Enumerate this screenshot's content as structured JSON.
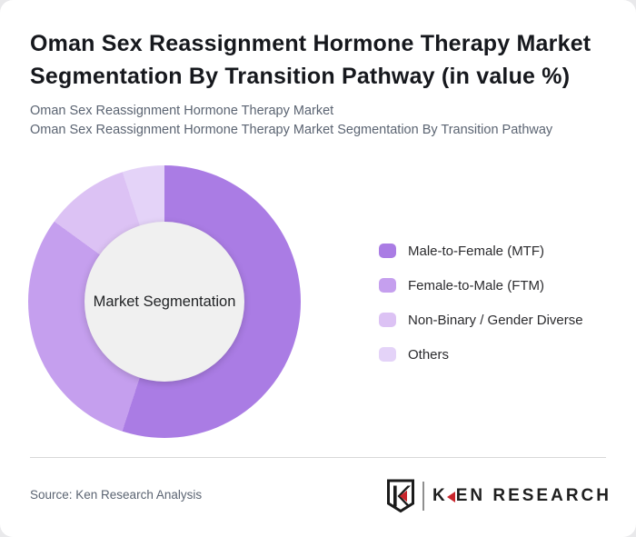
{
  "header": {
    "title_lines": [
      "Oman Sex Reassignment Hormone Therapy Market",
      "Segmentation By Transition Pathway (in value %)"
    ],
    "subtitle_lines": [
      "Oman Sex Reassignment Hormone Therapy Market",
      "Oman Sex Reassignment Hormone Therapy Market Segmentation By Transition Pathway"
    ]
  },
  "chart_data": {
    "type": "pie",
    "variant": "donut",
    "title": "Oman Sex Reassignment Hormone Therapy Market Segmentation By Transition Pathway (in value %)",
    "center_label": "Market Segmentation",
    "start_angle_deg": 0,
    "direction": "clockwise",
    "legend_position": "right",
    "inner_circle_color": "#f0f0f0",
    "segments": [
      {
        "label": "Male-to-Female (MTF)",
        "value": 55,
        "color": "#aa7ce4"
      },
      {
        "label": "Female-to-Male (FTM)",
        "value": 30,
        "color": "#c59fee"
      },
      {
        "label": "Non-Binary / Gender Diverse",
        "value": 10,
        "color": "#dcc2f4"
      },
      {
        "label": "Others",
        "value": 5,
        "color": "#e4d3f8"
      }
    ]
  },
  "footer": {
    "source": "Source: Ken Research Analysis",
    "logo": {
      "shield_letter": "K",
      "brand_first_letter": "K",
      "brand_rest": "EN RESEARCH",
      "accent_color": "#c9252c"
    }
  }
}
